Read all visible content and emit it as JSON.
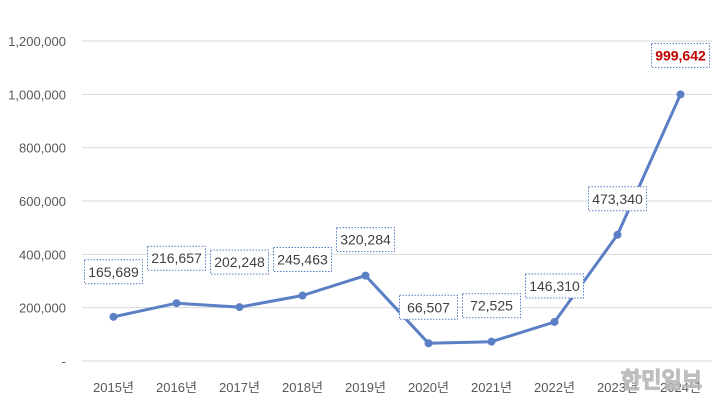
{
  "chart_data": {
    "type": "line",
    "categories": [
      "2015년",
      "2016년",
      "2017년",
      "2018년",
      "2019년",
      "2020년",
      "2021년",
      "2022년",
      "2023년",
      "2024년"
    ],
    "values": [
      165689,
      216657,
      202248,
      245463,
      320284,
      66507,
      72525,
      146310,
      473340,
      999642
    ],
    "data_labels": [
      "165,689",
      "216,657",
      "202,248",
      "245,463",
      "320,284",
      "66,507",
      "72,525",
      "146,310",
      "473,340",
      "999,642"
    ],
    "highlight_index": 9,
    "y_ticks": [
      0,
      200000,
      400000,
      600000,
      800000,
      1000000,
      1200000
    ],
    "y_tick_labels": [
      "-",
      "200,000",
      "400,000",
      "600,000",
      "800,000",
      "1,000,000",
      "1,200,000"
    ],
    "ylim": [
      0,
      1200000
    ],
    "grid": true,
    "title": "",
    "xlabel": "",
    "ylabel": "",
    "line_color": "#5b7fc4",
    "highlight_color": "#c00000"
  },
  "watermark": "한민일보"
}
